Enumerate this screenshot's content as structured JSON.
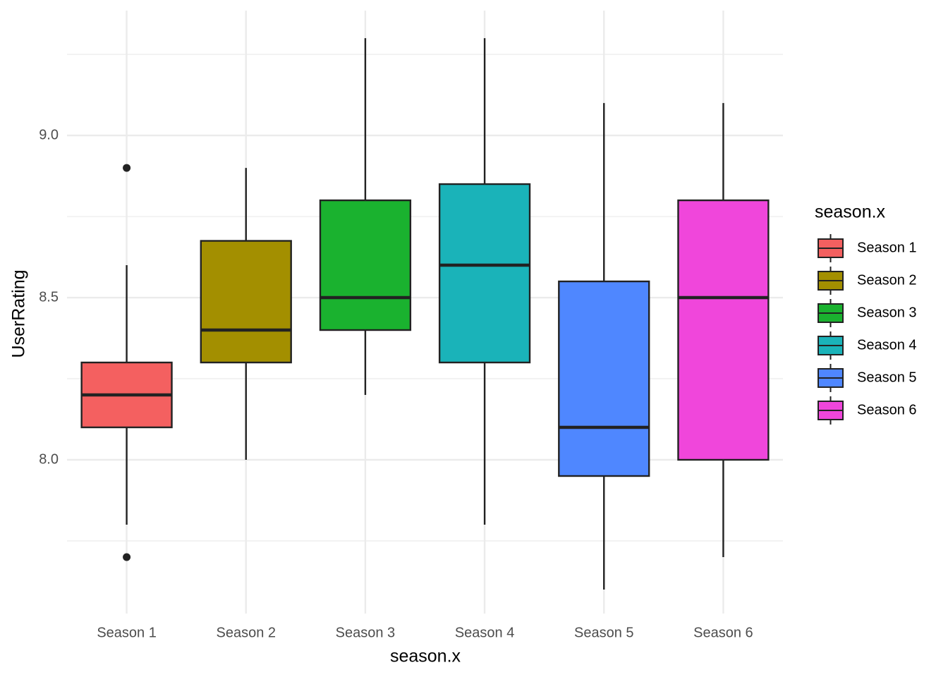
{
  "chart_data": {
    "type": "boxplot",
    "x_label": "season.x",
    "y_label": "UserRating",
    "legend_title": "season.x",
    "legend_position": "right",
    "grid": true,
    "categories": [
      "Season 1",
      "Season 2",
      "Season 3",
      "Season 4",
      "Season 5",
      "Season 6"
    ],
    "ylim": [
      7.526,
      9.385
    ],
    "yticks": [
      {
        "value": 8,
        "label": "8.0"
      },
      {
        "value": 8.5,
        "label": "8.5"
      },
      {
        "value": 9,
        "label": "9.0"
      }
    ],
    "y_minor_grid": [
      7.75,
      8.25,
      8.75,
      9.25
    ],
    "series": [
      {
        "name": "Season 1",
        "color": "#f46060",
        "low": 7.8,
        "q1": 8.1,
        "median": 8.2,
        "q3": 8.3,
        "high": 8.6,
        "outliers": [
          8.9,
          7.7
        ]
      },
      {
        "name": "Season 2",
        "color": "#a38f00",
        "low": 8.0,
        "q1": 8.3,
        "median": 8.4,
        "q3": 8.675,
        "high": 8.9,
        "outliers": []
      },
      {
        "name": "Season 3",
        "color": "#1ab22f",
        "low": 8.2,
        "q1": 8.4,
        "median": 8.5,
        "q3": 8.8,
        "high": 9.3,
        "outliers": []
      },
      {
        "name": "Season 4",
        "color": "#1ab3b9",
        "low": 7.8,
        "q1": 8.3,
        "median": 8.6,
        "q3": 8.85,
        "high": 9.3,
        "outliers": []
      },
      {
        "name": "Season 5",
        "color": "#4f87ff",
        "low": 7.6,
        "q1": 7.95,
        "median": 8.1,
        "q3": 8.55,
        "high": 9.1,
        "outliers": []
      },
      {
        "name": "Season 6",
        "color": "#f046db",
        "low": 7.7,
        "q1": 8.0,
        "median": 8.5,
        "q3": 8.8,
        "high": 9.1,
        "outliers": []
      }
    ]
  }
}
